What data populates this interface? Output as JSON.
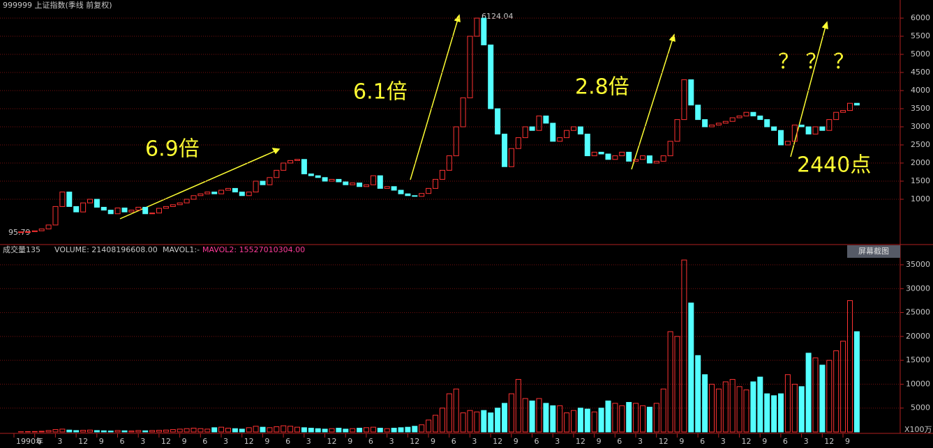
{
  "chart_data": [
    {
      "type": "candlestick",
      "title": "999999 上证指数(季线 前复权)",
      "up_color": "#ff3232",
      "down_color": "#54ffff",
      "ylim": [
        -231,
        6212
      ],
      "yticks": [
        1000,
        1500,
        2000,
        2500,
        3000,
        3500,
        4000,
        4500,
        5000,
        5500,
        6000
      ],
      "grid": true,
      "annotations": [
        "6.9倍",
        "6.1倍",
        "2.8倍",
        "？ ？ ？",
        "2440点",
        "6124.04",
        "95.79"
      ],
      "x_labels": [
        "1990年",
        "6",
        "3",
        "12",
        "9",
        "6",
        "3",
        "12",
        "9",
        "6",
        "3",
        "12",
        "9",
        "6",
        "3",
        "12",
        "9",
        "6",
        "3",
        "12",
        "9",
        "6",
        "3",
        "12",
        "9",
        "6",
        "3",
        "12",
        "9",
        "6",
        "3",
        "12",
        "9",
        "6",
        "3",
        "12",
        "9",
        "6",
        "3",
        "12",
        "9"
      ],
      "series": [
        {
          "name": "上证指数",
          "values": [
            100,
            105,
            130,
            180,
            290,
            800,
            1200,
            800,
            650,
            900,
            1000,
            780,
            700,
            600,
            760,
            650,
            700,
            780,
            600,
            620,
            750,
            800,
            850,
            900,
            1000,
            1100,
            1150,
            1200,
            1150,
            1250,
            1300,
            1200,
            1100,
            1200,
            1500,
            1400,
            1600,
            1800,
            2000,
            2070,
            2100,
            1700,
            1650,
            1600,
            1500,
            1550,
            1480,
            1400,
            1450,
            1350,
            1400,
            1650,
            1300,
            1350,
            1250,
            1150,
            1100,
            1080,
            1160,
            1300,
            1550,
            1800,
            2200,
            3000,
            3800,
            5500,
            6000,
            5260,
            3500,
            2800,
            1900,
            2400,
            2700,
            3000,
            2900,
            3300,
            3100,
            2600,
            2700,
            2900,
            3000,
            2800,
            2200,
            2300,
            2250,
            2100,
            2200,
            2300,
            2050,
            2100,
            2200,
            2000,
            2050,
            2200,
            2600,
            3200,
            4300,
            3600,
            3200,
            3000,
            3050,
            3100,
            3150,
            3250,
            3300,
            3400,
            3300,
            3200,
            3000,
            2900,
            2500,
            2600,
            3050,
            3000,
            2800,
            3000,
            2900,
            3200,
            3400,
            3450,
            3650,
            3600
          ]
        }
      ]
    },
    {
      "type": "bar",
      "title": "成交量135",
      "legend": [
        "VOLUME: 21408196608.00",
        "MAVOL1:-",
        "MAVOL2: 15527010304.00"
      ],
      "button": "屏幕截图",
      "unit": "X100万",
      "ylim": [
        0,
        36750
      ],
      "yticks": [
        5000,
        10000,
        15000,
        20000,
        25000,
        30000,
        35000
      ],
      "grid": true,
      "series": [
        {
          "name": "VOLUME",
          "values": [
            50,
            80,
            100,
            150,
            300,
            500,
            600,
            400,
            300,
            350,
            400,
            300,
            250,
            200,
            300,
            250,
            200,
            300,
            250,
            300,
            350,
            400,
            500,
            600,
            700,
            800,
            700,
            600,
            900,
            1000,
            800,
            700,
            600,
            900,
            1200,
            1000,
            900,
            1100,
            1300,
            1200,
            1000,
            900,
            800,
            700,
            600,
            700,
            800,
            600,
            700,
            800,
            900,
            1000,
            800,
            700,
            800,
            900,
            1000,
            1200,
            1500,
            2500,
            3500,
            5000,
            8000,
            9000,
            4000,
            4500,
            4200,
            4500,
            4000,
            5000,
            6000,
            8000,
            11000,
            7000,
            6500,
            7000,
            6000,
            5500,
            5500,
            4000,
            4500,
            5000,
            4800,
            4200,
            5000,
            6500,
            6000,
            5500,
            6200,
            6000,
            5500,
            5200,
            6000,
            9000,
            21000,
            20000,
            36000,
            27000,
            16000,
            12000,
            10000,
            9000,
            10500,
            11000,
            9500,
            8800,
            10500,
            11500,
            8000,
            7600,
            8000,
            12000,
            10000,
            9500,
            16500,
            15500,
            14000,
            15000,
            17000,
            19000,
            27500,
            21000
          ]
        }
      ]
    }
  ]
}
